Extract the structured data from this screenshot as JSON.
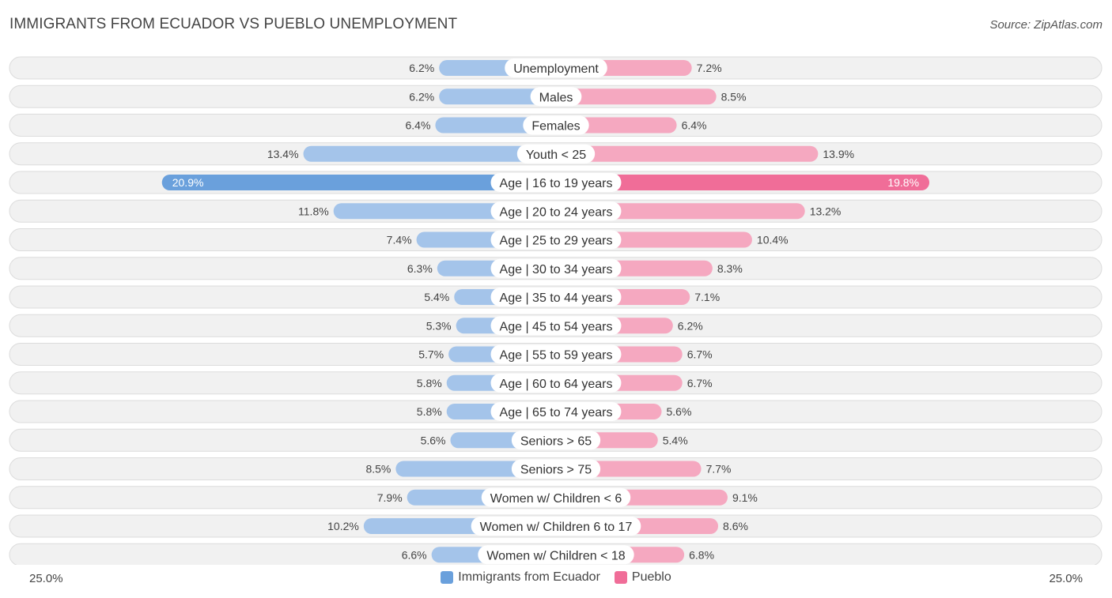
{
  "header": {
    "title": "IMMIGRANTS FROM ECUADOR VS PUEBLO UNEMPLOYMENT",
    "source": "Source: ZipAtlas.com"
  },
  "colors": {
    "left_bar": "#a4c4ea",
    "left_bar_strong": "#6aa0dc",
    "right_bar": "#f5a8c0",
    "right_bar_strong": "#f06d98"
  },
  "axis": {
    "left_label": "25.0%",
    "right_label": "25.0%"
  },
  "legend": {
    "left": {
      "label": "Immigrants from Ecuador",
      "color": "#6aa0dc"
    },
    "right": {
      "label": "Pueblo",
      "color": "#f06d98"
    }
  },
  "chart_data": {
    "type": "bar",
    "orientation": "diverging-horizontal",
    "title": "IMMIGRANTS FROM ECUADOR VS PUEBLO UNEMPLOYMENT",
    "xlim": [
      -25,
      25
    ],
    "categories": [
      "Unemployment",
      "Males",
      "Females",
      "Youth < 25",
      "Age | 16 to 19 years",
      "Age | 20 to 24 years",
      "Age | 25 to 29 years",
      "Age | 30 to 34 years",
      "Age | 35 to 44 years",
      "Age | 45 to 54 years",
      "Age | 55 to 59 years",
      "Age | 60 to 64 years",
      "Age | 65 to 74 years",
      "Seniors > 65",
      "Seniors > 75",
      "Women w/ Children < 6",
      "Women w/ Children 6 to 17",
      "Women w/ Children < 18"
    ],
    "series": [
      {
        "name": "Immigrants from Ecuador",
        "values": [
          6.2,
          6.2,
          6.4,
          13.4,
          20.9,
          11.8,
          7.4,
          6.3,
          5.4,
          5.3,
          5.7,
          5.8,
          5.8,
          5.6,
          8.5,
          7.9,
          10.2,
          6.6
        ],
        "labels": [
          "6.2%",
          "6.2%",
          "6.4%",
          "13.4%",
          "20.9%",
          "11.8%",
          "7.4%",
          "6.3%",
          "5.4%",
          "5.3%",
          "5.7%",
          "5.8%",
          "5.8%",
          "5.6%",
          "8.5%",
          "7.9%",
          "10.2%",
          "6.6%"
        ]
      },
      {
        "name": "Pueblo",
        "values": [
          7.2,
          8.5,
          6.4,
          13.9,
          19.8,
          13.2,
          10.4,
          8.3,
          7.1,
          6.2,
          6.7,
          6.7,
          5.6,
          5.4,
          7.7,
          9.1,
          8.6,
          6.8
        ],
        "labels": [
          "7.2%",
          "8.5%",
          "6.4%",
          "13.9%",
          "19.8%",
          "13.2%",
          "10.4%",
          "8.3%",
          "7.1%",
          "6.2%",
          "6.7%",
          "6.7%",
          "5.6%",
          "5.4%",
          "7.7%",
          "9.1%",
          "8.6%",
          "6.8%"
        ]
      }
    ],
    "highlight_index": 4
  }
}
